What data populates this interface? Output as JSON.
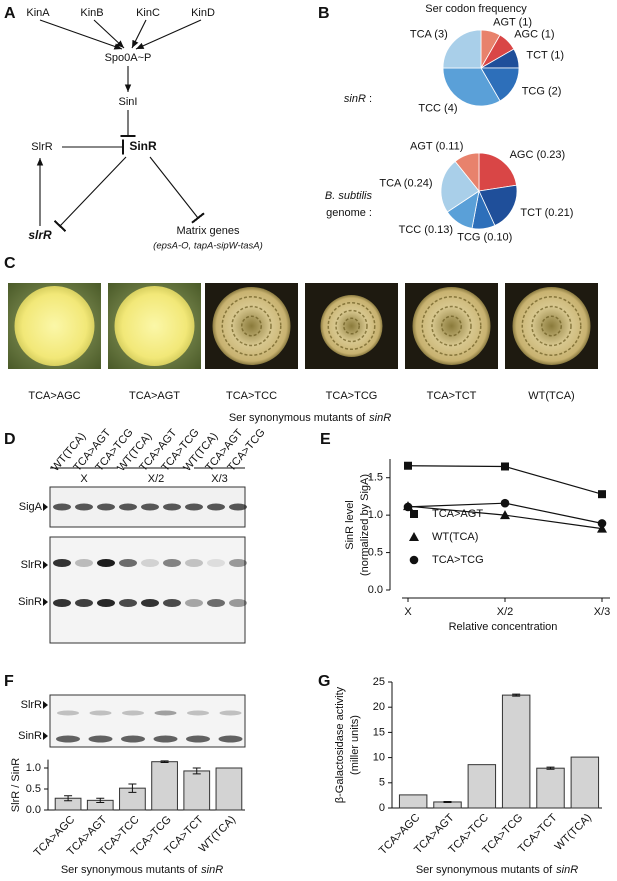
{
  "panels": [
    "A",
    "B",
    "C",
    "D",
    "E",
    "F",
    "G"
  ],
  "diagram": {
    "nodes": [
      "KinA",
      "KinB",
      "KinC",
      "KinD",
      "Spo0A~P",
      "SinI",
      "SinR",
      "SlrR",
      "slrR",
      "Matrix genes",
      "(epsA-O, tapA-sipW-tasA)"
    ]
  },
  "colonies": {
    "labels": [
      "TCA>AGC",
      "TCA>AGT",
      "TCA>TCC",
      "TCA>TCG",
      "TCA>TCT",
      "WT(TCA)"
    ],
    "caption": [
      "Ser synonymous mutants of",
      "sinR"
    ]
  },
  "blot_d": {
    "lanes": [
      "WT(TCA)",
      "TCA>AGT",
      "TCA>TCG",
      "WT(TCA)",
      "TCA>AGT",
      "TCA>TCG",
      "WT(TCA)",
      "TCA>AGT",
      "TCA>TCG"
    ],
    "groups": [
      "X",
      "X/2",
      "X/3"
    ],
    "rows": [
      "SigA",
      "SlrR",
      "SinR"
    ]
  },
  "blot_f": {
    "rows": [
      "SlrR",
      "SinR"
    ]
  },
  "chart_data": [
    {
      "type": "pie",
      "title": "Ser codon frequency",
      "label": [
        "sinR",
        ":"
      ],
      "values": [
        1,
        1,
        1,
        2,
        4,
        3
      ],
      "value_labels": [
        "AGT (1)",
        "AGC (1)",
        "TCT (1)",
        "TCG (2)",
        "TCC (4)",
        "TCA (3)"
      ],
      "colors": [
        "#e8826c",
        "#d94646",
        "#1f4f9a",
        "#2d6fba",
        "#5aa0d8",
        "#a9cfe9"
      ]
    },
    {
      "type": "pie",
      "label": [
        "B. subtilis",
        "genome :"
      ],
      "values": [
        0.23,
        0.21,
        0.1,
        0.13,
        0.24,
        0.11
      ],
      "value_labels": [
        "AGC (0.23)",
        "TCT (0.21)",
        "TCG (0.10)",
        "TCC (0.13)",
        "TCA (0.24)",
        "AGT (0.11)"
      ],
      "colors": [
        "#d94646",
        "#1f4f9a",
        "#2d6fba",
        "#5aa0d8",
        "#a9cfe9",
        "#e8826c"
      ]
    },
    {
      "type": "line",
      "ylabel": [
        "SinR level",
        "(normalized by SigA)"
      ],
      "xlabel": "Relative concentration",
      "categories": [
        "X",
        "X/2",
        "X/3"
      ],
      "series": [
        {
          "name": "TCA>AGT",
          "color": "#111111",
          "marker": "square",
          "values": [
            1.66,
            1.65,
            1.28
          ]
        },
        {
          "name": "WT(TCA)",
          "color": "#111111",
          "marker": "triangle",
          "values": [
            1.12,
            1.0,
            0.82
          ]
        },
        {
          "name": "TCA>TCG",
          "color": "#111111",
          "marker": "circle",
          "values": [
            1.11,
            1.16,
            0.89
          ]
        }
      ],
      "ylim": [
        0,
        1.75
      ],
      "yticks": [
        {
          "value": 0,
          "label": "0.0"
        },
        0.5,
        {
          "value": 1,
          "label": "1.0"
        },
        1.5
      ]
    },
    {
      "type": "bar",
      "ylabel": "SlrR / SinR",
      "xlabel": [
        "Ser synonymous mutants of",
        "sinR"
      ],
      "categories": [
        "TCA>AGC",
        "TCA>AGT",
        "TCA>TCC",
        "TCA>TCG",
        "TCA>TCT",
        "WT(TCA)"
      ],
      "values": [
        0.28,
        0.23,
        0.52,
        1.15,
        0.93,
        1.0
      ],
      "errors": [
        0.06,
        0.05,
        0.1,
        0.02,
        0.07,
        0
      ],
      "color": "#d3d3d3",
      "ylim": [
        0,
        1.2
      ],
      "yticks": [
        {
          "value": 0,
          "label": "0.0"
        },
        0.5,
        {
          "value": 1,
          "label": "1.0"
        }
      ]
    },
    {
      "type": "bar",
      "ylabel": [
        "β-Galactosidase activity",
        "(miller units)"
      ],
      "xlabel": [
        "Ser synonymous mutants of",
        "sinR"
      ],
      "categories": [
        "TCA>AGC",
        "TCA>AGT",
        "TCA>TCC",
        "TCA>TCG",
        "TCA>TCT",
        "WT(TCA)"
      ],
      "values": [
        2.6,
        1.2,
        8.6,
        22.4,
        7.9,
        10.1
      ],
      "errors": [
        0,
        0.1,
        0,
        0.2,
        0.2,
        0
      ],
      "color": "#d3d3d3",
      "ylim": [
        0,
        25
      ],
      "yticks": [
        0,
        5,
        10,
        15,
        20,
        25
      ]
    }
  ]
}
